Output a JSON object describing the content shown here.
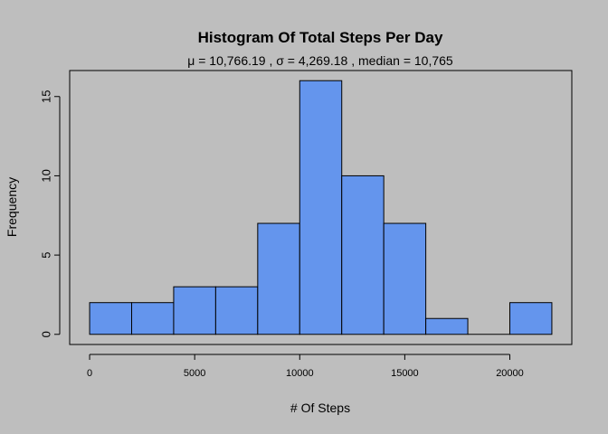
{
  "chart_data": {
    "type": "bar",
    "title": "Histogram Of Total Steps Per Day",
    "subtitle": "μ = 10,766.19 ,  σ = 4,269.18 , median = 10,765",
    "xlabel": "# Of Steps",
    "ylabel": "Frequency",
    "bin_edges": [
      0,
      2000,
      4000,
      6000,
      8000,
      10000,
      12000,
      14000,
      16000,
      18000,
      20000,
      22000
    ],
    "values": [
      2,
      2,
      3,
      3,
      7,
      16,
      10,
      7,
      1,
      0,
      2
    ],
    "xlim": [
      -950,
      22950
    ],
    "ylim": [
      -0.64,
      16.64
    ],
    "xticks": [
      0,
      5000,
      10000,
      15000,
      20000
    ],
    "xtick_labels": [
      "0",
      "5000",
      "10000",
      "15000",
      "20000"
    ],
    "yticks": [
      0,
      5,
      10,
      15
    ],
    "ytick_labels": [
      "0",
      "5",
      "10",
      "15"
    ],
    "grid": false,
    "colors": {
      "background": "#bebebe",
      "bar_fill": "#6495ed",
      "bar_stroke": "#000000"
    }
  }
}
